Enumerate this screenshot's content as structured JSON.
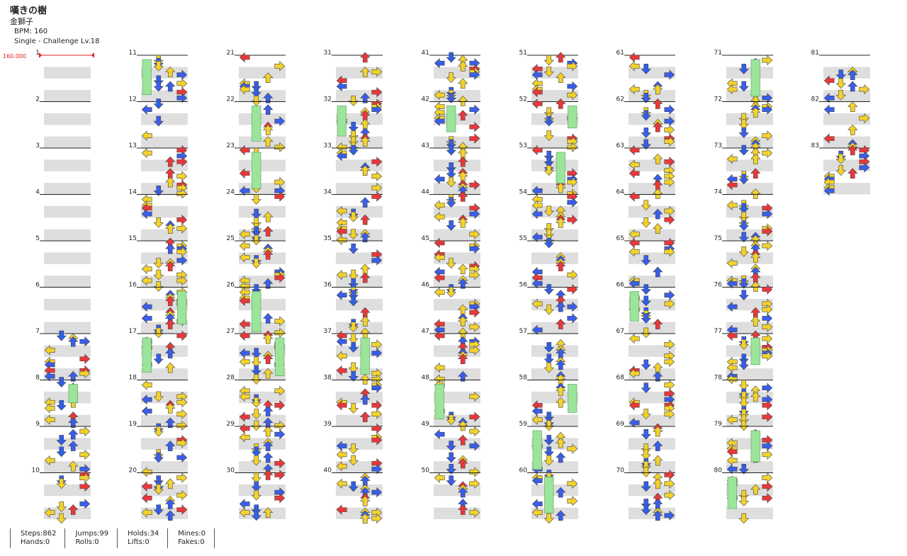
{
  "song": {
    "title": "嘆きの樹",
    "artist": "金獅子",
    "bpm_label": "BPM: 160",
    "chart_label": "Single - Challenge Lv.18"
  },
  "bpm_marker": "160.000",
  "total_measures": 83,
  "measures_per_column": 10,
  "colors": {
    "left": "#e8383b",
    "down": "#2f5fe6",
    "up": "#e8383b",
    "right": "#e8383b",
    "quarter": "#e8383b",
    "eighth": "#3a5ee8",
    "sixteenth": "#f2d22c",
    "other": "#c93df0",
    "hold": "#9be59b",
    "band": "#dedede"
  },
  "stats": {
    "steps": "Steps:862",
    "hands": "Hands:0",
    "jumps": "Jumps:99",
    "rolls": "Rolls:0",
    "holds": "Holds:34",
    "lifts": "Lifts:0",
    "mines": "Mines:0",
    "fakes": "Fakes:0"
  }
}
